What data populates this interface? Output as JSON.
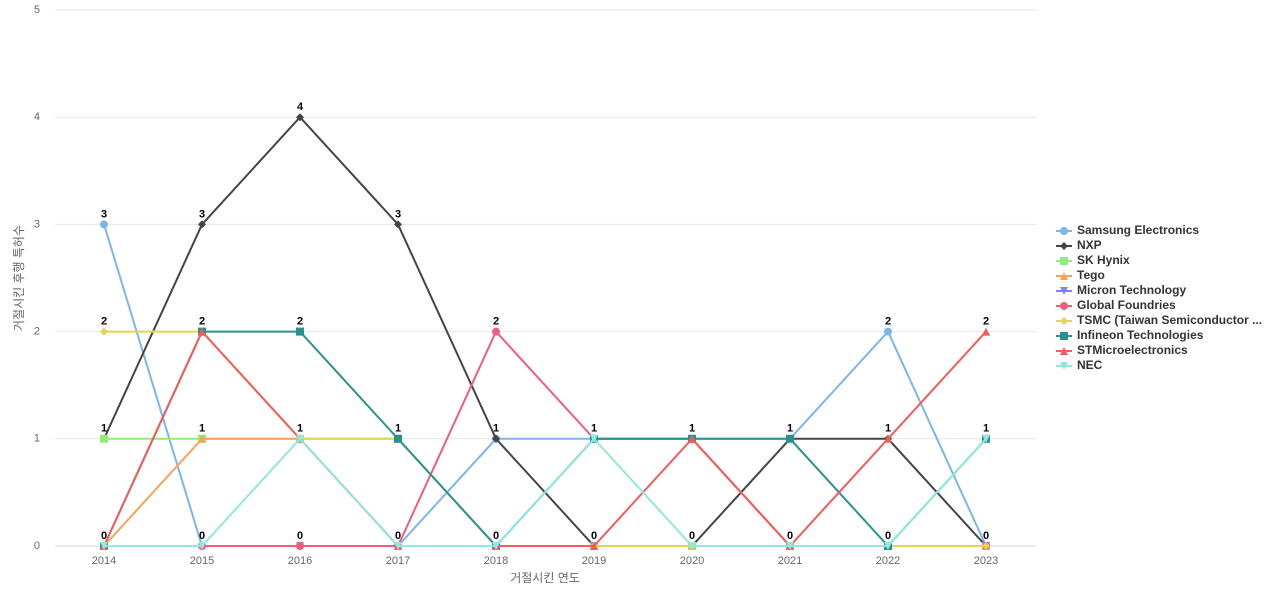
{
  "chart_data": {
    "type": "line",
    "x_label": "거절시킨 연도",
    "y_label": "거절시킨 후행 특허수",
    "categories": [
      "2014",
      "2015",
      "2016",
      "2017",
      "2018",
      "2019",
      "2020",
      "2021",
      "2022",
      "2023"
    ],
    "ylim": [
      0,
      5
    ],
    "yticks": [
      0,
      1,
      2,
      3,
      4,
      5
    ],
    "grid": true,
    "legend": "right",
    "series": [
      {
        "name": "Samsung Electronics",
        "color": "#7cb5ec",
        "marker": "circle",
        "values": [
          3,
          0,
          0,
          0,
          1,
          1,
          1,
          1,
          2,
          0
        ]
      },
      {
        "name": "NXP",
        "color": "#434348",
        "marker": "diamond",
        "values": [
          1,
          3,
          4,
          3,
          1,
          0,
          0,
          1,
          1,
          0
        ]
      },
      {
        "name": "SK Hynix",
        "color": "#90ed7d",
        "marker": "square",
        "values": [
          1,
          1,
          1,
          1,
          0,
          0,
          0,
          0,
          0,
          0
        ]
      },
      {
        "name": "Tego",
        "color": "#f7a35c",
        "marker": "triangle",
        "values": [
          0,
          1,
          1,
          0,
          0,
          0,
          0,
          0,
          0,
          0
        ]
      },
      {
        "name": "Micron Technology",
        "color": "#8085e9",
        "marker": "triangle-down",
        "values": [
          0,
          0,
          0,
          0,
          0,
          0,
          0,
          0,
          0,
          0
        ]
      },
      {
        "name": "Global Foundries",
        "color": "#f15c80",
        "marker": "circle",
        "values": [
          0,
          0,
          0,
          0,
          2,
          1,
          1,
          0,
          0,
          0
        ]
      },
      {
        "name": "TSMC (Taiwan Semiconductor ...",
        "color": "#e4d354",
        "marker": "diamond",
        "values": [
          2,
          2,
          1,
          1,
          0,
          0,
          0,
          0,
          0,
          0
        ]
      },
      {
        "name": "Infineon Technologies",
        "color": "#2b908f",
        "marker": "square",
        "values": [
          0,
          2,
          2,
          1,
          0,
          1,
          1,
          1,
          0,
          1
        ]
      },
      {
        "name": "STMicroelectronics",
        "color": "#f45b5b",
        "marker": "triangle",
        "values": [
          0,
          2,
          1,
          0,
          0,
          0,
          1,
          0,
          1,
          2
        ]
      },
      {
        "name": "NEC",
        "color": "#91e8e1",
        "marker": "triangle-down",
        "values": [
          0,
          0,
          1,
          0,
          0,
          1,
          0,
          0,
          0,
          1
        ]
      }
    ]
  }
}
